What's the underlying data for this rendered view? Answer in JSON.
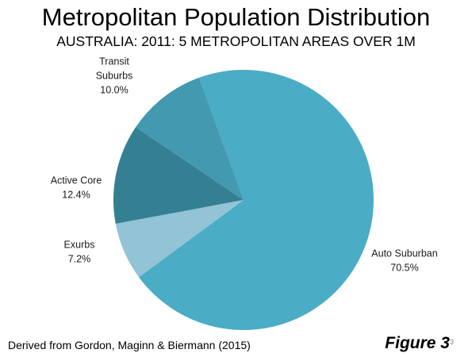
{
  "chart_data": {
    "type": "pie",
    "title": "Metropolitan Population Distribution",
    "subtitle": "AUSTRALIA: 2011: 5 METROPOLITAN AREAS OVER 1M",
    "slices": [
      {
        "label": "Auto Suburban",
        "value": 70.5,
        "value_label": "70.5%",
        "color": "#4aacc5"
      },
      {
        "label": "Exurbs",
        "value": 7.2,
        "value_label": "7.2%",
        "color": "#92c4d5"
      },
      {
        "label": "Active Core",
        "value": 12.4,
        "value_label": "12.4%",
        "color": "#357f92"
      },
      {
        "label": "Transit Suburbs",
        "value": 10.0,
        "value_label": "10.0%",
        "color": "#4399b0"
      }
    ],
    "legend": "none"
  },
  "footer": {
    "source": "Derived from  Gordon, Maginn & Biermann (2015)",
    "figure_label": "Figure 3",
    "page_number": "3"
  }
}
